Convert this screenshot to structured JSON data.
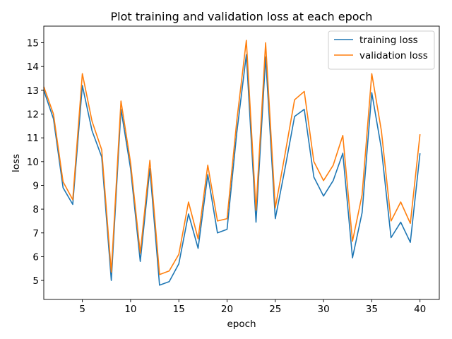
{
  "chart_data": {
    "type": "line",
    "title": "Plot training and validation loss at each epoch",
    "xlabel": "epoch",
    "ylabel": "loss",
    "xlim": [
      1,
      42
    ],
    "ylim": [
      4.2,
      15.7
    ],
    "xticks": [
      5,
      10,
      15,
      20,
      25,
      30,
      35,
      40
    ],
    "yticks": [
      5,
      6,
      7,
      8,
      9,
      10,
      11,
      12,
      13,
      14,
      15
    ],
    "grid": false,
    "legend_position": "top-right",
    "x": [
      1,
      2,
      3,
      4,
      5,
      6,
      7,
      8,
      9,
      10,
      11,
      12,
      13,
      14,
      15,
      16,
      17,
      18,
      19,
      20,
      21,
      22,
      23,
      24,
      25,
      26,
      27,
      28,
      29,
      30,
      31,
      32,
      33,
      34,
      35,
      36,
      37,
      38,
      39,
      40
    ],
    "series": [
      {
        "name": "training loss",
        "color": "#1f77b4",
        "values": [
          13.0,
          11.8,
          8.9,
          8.2,
          13.2,
          11.3,
          10.2,
          5.0,
          12.2,
          9.7,
          5.8,
          9.7,
          4.8,
          4.95,
          5.7,
          7.8,
          6.35,
          9.45,
          7.0,
          7.15,
          11.2,
          14.5,
          7.45,
          14.4,
          7.6,
          9.7,
          11.9,
          12.2,
          9.35,
          8.55,
          9.2,
          10.35,
          5.95,
          7.85,
          12.9,
          10.55,
          6.8,
          7.45,
          6.6,
          10.35
        ]
      },
      {
        "name": "validation loss",
        "color": "#ff7f0e",
        "values": [
          13.15,
          12.0,
          9.15,
          8.4,
          13.7,
          11.7,
          10.5,
          5.35,
          12.55,
          9.95,
          6.15,
          10.05,
          5.25,
          5.4,
          6.1,
          8.3,
          6.75,
          9.85,
          7.5,
          7.6,
          11.7,
          15.1,
          7.95,
          15.0,
          8.05,
          10.3,
          12.6,
          12.95,
          10.0,
          9.2,
          9.85,
          11.1,
          6.65,
          8.6,
          13.7,
          11.3,
          7.5,
          8.3,
          7.4,
          11.15
        ]
      }
    ]
  }
}
